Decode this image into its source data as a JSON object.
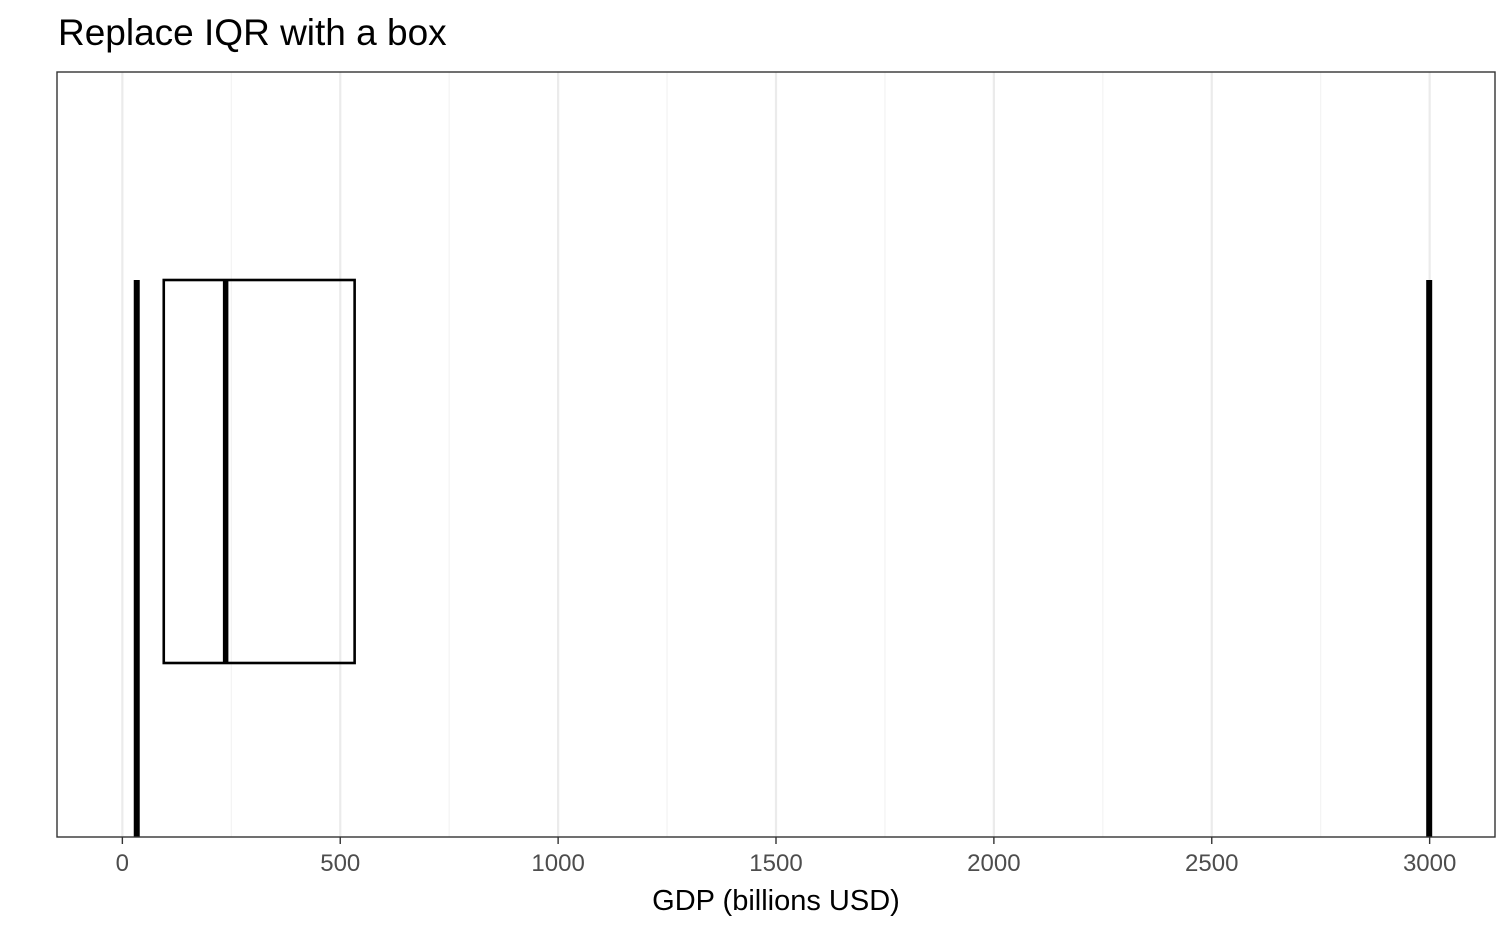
{
  "chart_data": {
    "type": "boxplot",
    "title": "Replace IQR with a box",
    "xlabel": "GDP (billions USD)",
    "ylabel": "",
    "xlim": [
      -150,
      3150
    ],
    "major_ticks": [
      0,
      500,
      1000,
      1500,
      2000,
      2500,
      3000
    ],
    "tick_labels": [
      "0",
      "500",
      "1000",
      "1500",
      "2000",
      "2500",
      "3000"
    ],
    "minor_ticks": [
      250,
      750,
      1250,
      1750,
      2250,
      2750
    ],
    "grid": "vertical",
    "box": {
      "min": 33,
      "q1": 95,
      "median": 237,
      "q3": 533,
      "max": 2999
    },
    "colors": {
      "stroke": "#000000",
      "grid_major": "#ebebeb",
      "grid_minor": "#f3f3f3",
      "panel_border": "#333333",
      "tick_text": "#4d4d4d"
    }
  }
}
